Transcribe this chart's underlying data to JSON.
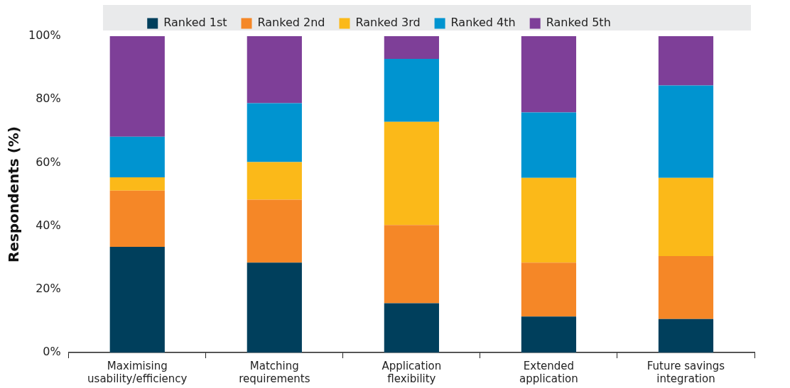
{
  "chart_data": {
    "type": "bar",
    "stacked": true,
    "ylabel": "Respondents (%)",
    "legend": "top",
    "categories": [
      "Maximising usability/efficiency",
      "Matching requirements",
      "Application flexibility",
      "Extended application",
      "Future savings integration"
    ],
    "series": [
      {
        "name": "Ranked 1st",
        "color": "#003f5c",
        "values": [
          33.4,
          28.4,
          15.6,
          11.4,
          10.6
        ]
      },
      {
        "name": "Ranked 2nd",
        "color": "#f58727",
        "values": [
          17.8,
          19.9,
          24.7,
          17.0,
          19.9
        ]
      },
      {
        "name": "Ranked 3rd",
        "color": "#fbb919",
        "values": [
          4.2,
          11.9,
          32.6,
          26.8,
          24.7
        ]
      },
      {
        "name": "Ranked 4th",
        "color": "#0094d0",
        "values": [
          12.8,
          18.6,
          19.9,
          20.7,
          29.2
        ]
      },
      {
        "name": "Ranked 5th",
        "color": "#7e3f98",
        "values": [
          31.8,
          21.2,
          7.2,
          24.1,
          15.6
        ]
      }
    ],
    "ylim": [
      0,
      100
    ],
    "yticks": [
      {
        "value": 0,
        "label": "0%"
      },
      {
        "value": 20,
        "label": "20%"
      },
      {
        "value": 40,
        "label": "40%"
      },
      {
        "value": 60,
        "label": "60%"
      },
      {
        "value": 80,
        "label": "80%"
      },
      {
        "value": 100,
        "label": "100%"
      }
    ]
  }
}
